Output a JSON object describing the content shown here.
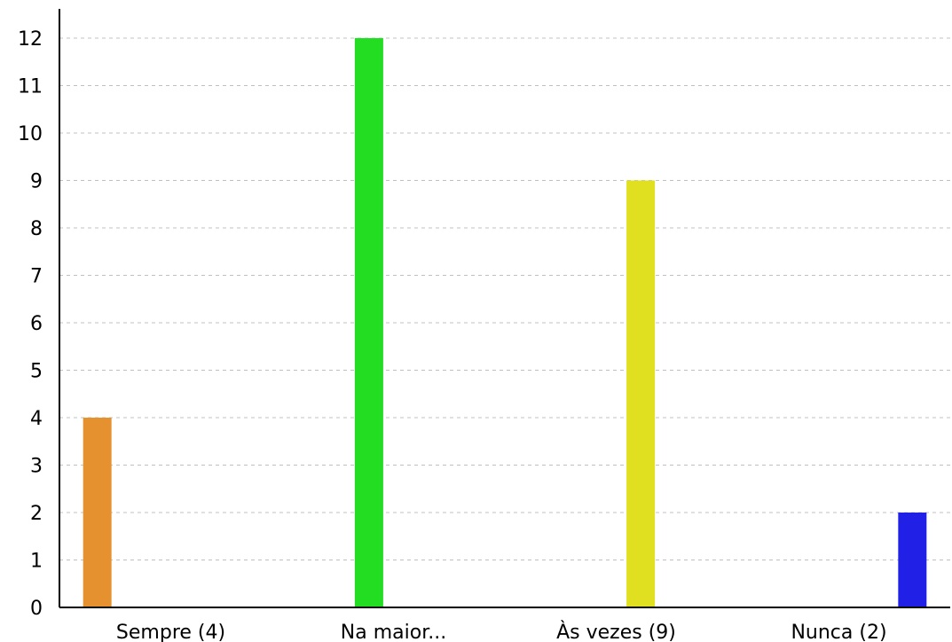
{
  "chart_data": {
    "type": "bar",
    "title": "",
    "xlabel": "",
    "ylabel": "",
    "categories": [
      "Sempre (4)",
      "Na maior...",
      "Às vezes (9)",
      "Nunca (2)"
    ],
    "values": [
      4,
      12,
      9,
      2
    ],
    "colors": [
      "#e69130",
      "#22dd22",
      "#e0e020",
      "#2020e6"
    ],
    "ylim": [
      0,
      12
    ],
    "yticks": [
      0,
      1,
      2,
      3,
      4,
      5,
      6,
      7,
      8,
      9,
      10,
      11,
      12
    ],
    "grid": true,
    "grid_style": "dashed-horizontal",
    "legend": "none"
  }
}
